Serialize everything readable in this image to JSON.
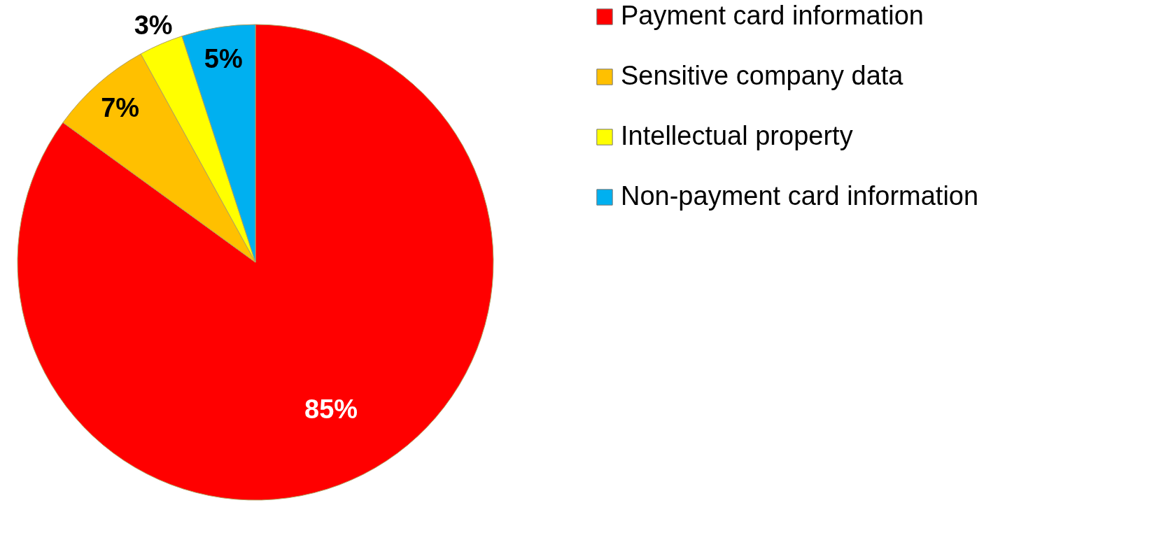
{
  "chart_data": {
    "type": "pie",
    "categories": [
      "Payment card information",
      "Sensitive company data",
      "Intellectual property",
      "Non-payment card information"
    ],
    "values": [
      85,
      7,
      3,
      5
    ],
    "colors": [
      "#ff0000",
      "#ffc000",
      "#ffff00",
      "#00b0f0"
    ],
    "value_labels": [
      "85%",
      "7%",
      "3%",
      "5%"
    ],
    "legend": "right"
  }
}
